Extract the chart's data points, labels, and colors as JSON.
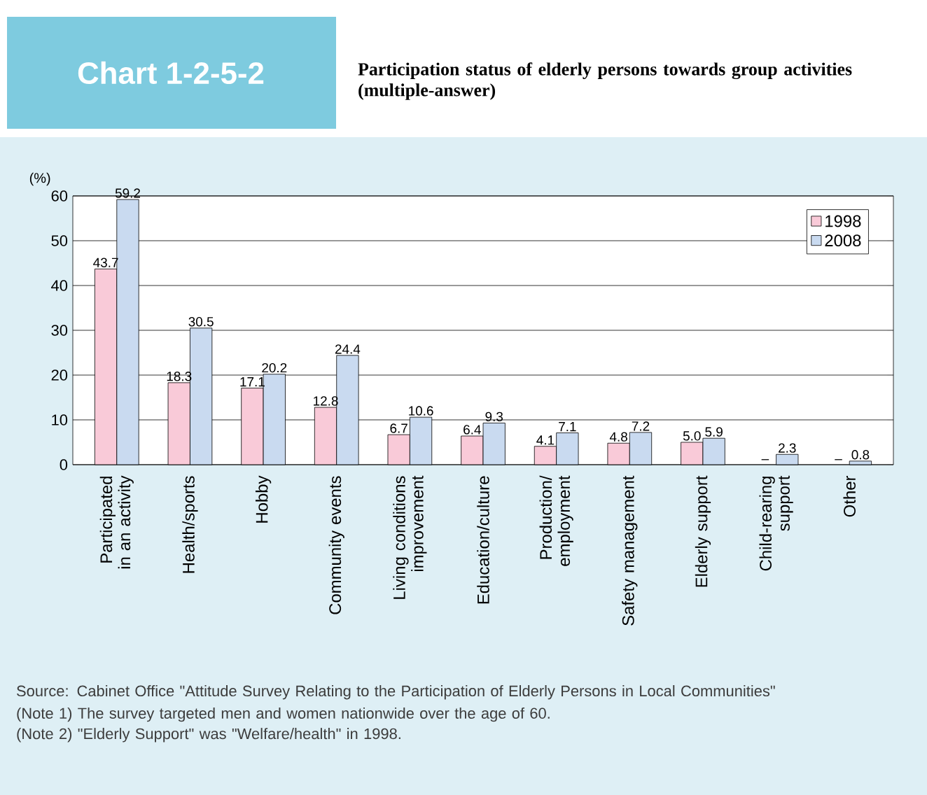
{
  "chart_data": {
    "type": "bar",
    "title": "Chart 1-2-5-2",
    "subtitle": "Participation status of elderly persons towards group activities (multiple-answer)",
    "ylabel": "(%)",
    "categories": [
      "Participated in an activity",
      "Health/sports",
      "Hobby",
      "Community events",
      "Living conditions improvement",
      "Education/culture",
      "Production/ employment",
      "Safety management",
      "Elderly support",
      "Child-rearing support",
      "Other"
    ],
    "series": [
      {
        "name": "1998",
        "color": "#f9cad8",
        "values": [
          43.7,
          18.3,
          17.1,
          12.8,
          6.7,
          6.4,
          4.1,
          4.8,
          5.0,
          null,
          null
        ],
        "value_labels": [
          "43.7",
          "18.3",
          "17.1",
          "12.8",
          "6.7",
          "6.4",
          "4.1",
          "4.8",
          "5.0",
          "–",
          "–"
        ]
      },
      {
        "name": "2008",
        "color": "#c9daf0",
        "values": [
          59.2,
          30.5,
          20.2,
          24.4,
          10.6,
          9.3,
          7.1,
          7.2,
          5.9,
          2.3,
          0.8
        ],
        "value_labels": [
          "59.2",
          "30.5",
          "20.2",
          "24.4",
          "10.6",
          "9.3",
          "7.1",
          "7.2",
          "5.9",
          "2.3",
          "0.8"
        ]
      }
    ],
    "ylim": [
      0,
      60
    ],
    "yticks": [
      0,
      10,
      20,
      30,
      40,
      50,
      60
    ],
    "grid": "y",
    "legend": "top right",
    "annotations": [
      "Source: Cabinet Office \"Attitude Survey Relating to the Participation of Elderly Persons in Local Communities\"",
      "(Note 1) The survey targeted men and women nationwide over the age of 60.",
      "(Note 2) \"Elderly Support\" was \"Welfare/health\" in 1998."
    ]
  }
}
